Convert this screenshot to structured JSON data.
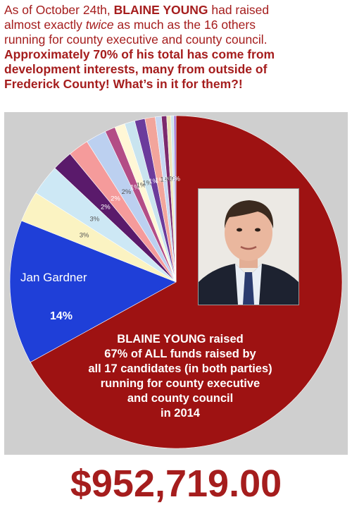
{
  "header": {
    "line1_a": "As of October 24th, ",
    "line1_name": "BLAINE YOUNG",
    "line1_b": " had raised",
    "line2_a": "almost exactly ",
    "line2_em": "twice",
    "line2_b": " as much as  the 16 others",
    "line3": "running for county executive and county council.",
    "line4": "Approximately 70% of his total has come from",
    "line5": "development interests, many from outside of",
    "line6": "Frederick County! What’s in it for them?!"
  },
  "gardner": {
    "name": "Jan Gardner",
    "pct": "14%"
  },
  "blaine_label": {
    "l1": "BLAINE YOUNG raised",
    "l2": "67% of ALL funds raised by",
    "l3": "all 17 candidates (in both parties)",
    "l4": "running for county executive",
    "l5": "and county council",
    "l6": "in 2014"
  },
  "total_amount": "$952,719.00",
  "colors": {
    "blaine": "#9e1212",
    "gardner": "#1f3fd8",
    "header_red": "#a51d1d"
  },
  "chart_data": {
    "type": "pie",
    "title": "",
    "slices": [
      {
        "name": "BLAINE YOUNG",
        "value": 67,
        "label": "",
        "color": "#9e1212"
      },
      {
        "name": "Jan Gardner",
        "value": 14,
        "label": "",
        "color": "#1f3fd8"
      },
      {
        "name": "",
        "value": 3,
        "label": "3%",
        "color": "#fbf3c2",
        "dark": true
      },
      {
        "name": "",
        "value": 3,
        "label": "3%",
        "color": "#cde8f5",
        "dark": true
      },
      {
        "name": "",
        "value": 2,
        "label": "2%",
        "color": "#5a1a6b"
      },
      {
        "name": "",
        "value": 2,
        "label": "2%",
        "color": "#f59b9b"
      },
      {
        "name": "",
        "value": 2,
        "label": "2%",
        "color": "#bcd0f0",
        "dark": true
      },
      {
        "name": "",
        "value": 1,
        "label": "1%",
        "color": "#b34d86"
      },
      {
        "name": "",
        "value": 1,
        "label": "1%",
        "color": "#fff7d6",
        "dark": true
      },
      {
        "name": "",
        "value": 1,
        "label": "1%",
        "color": "#c9e4ef",
        "dark": true
      },
      {
        "name": "",
        "value": 1,
        "label": "1%",
        "color": "#6b3b9c"
      },
      {
        "name": "",
        "value": 1,
        "label": "1%",
        "color": "#f2a59c"
      },
      {
        "name": "",
        "value": 0.6,
        "label": "1%",
        "color": "#c6d7f2",
        "dark": true
      },
      {
        "name": "",
        "value": 0.5,
        "label": "0%",
        "color": "#7c2a6e"
      },
      {
        "name": "",
        "value": 0.4,
        "label": "0%",
        "color": "#ece4b8",
        "dark": true
      },
      {
        "name": "",
        "value": 0.3,
        "label": "0%",
        "color": "#cfe6f0",
        "dark": true
      },
      {
        "name": "",
        "value": 0.2,
        "label": "0%",
        "color": "#9b6ed1"
      }
    ]
  }
}
